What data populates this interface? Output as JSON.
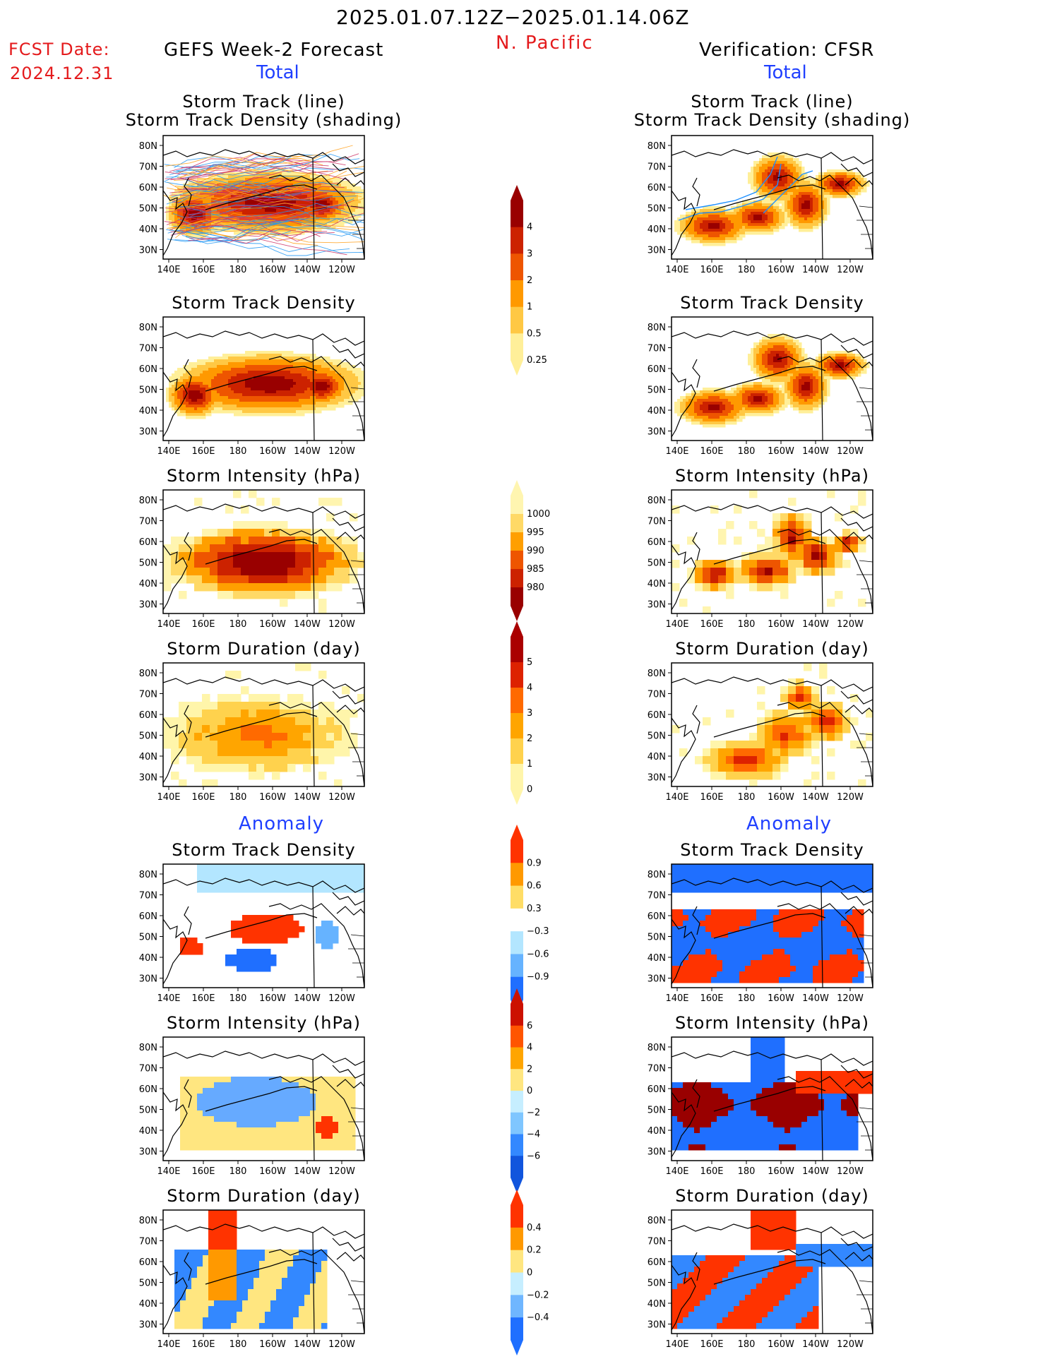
{
  "header": {
    "period": "2025.01.07.12Z−2025.01.14.06Z",
    "region": "N. Pacific",
    "fcst_label": "FCST Date:",
    "fcst_date": "2024.12.31",
    "left_title": "GEFS Week-2 Forecast",
    "right_title": "Verification: CFSR",
    "total_label": "Total",
    "anomaly_label": "Anomaly"
  },
  "axes": {
    "lat_ticks": [
      "80N",
      "70N",
      "60N",
      "50N",
      "40N",
      "30N"
    ],
    "lon_ticks": [
      "140E",
      "160E",
      "180",
      "160W",
      "140W",
      "120W"
    ]
  },
  "panels": {
    "left": [
      {
        "title1": "Storm Track (line)",
        "title2": "Storm Track Density (shading)",
        "kind": "density",
        "track": "dense"
      },
      {
        "title1": "Storm Track Density",
        "title2": "",
        "kind": "density"
      },
      {
        "title1": "Storm Intensity (hPa)",
        "title2": "",
        "kind": "intensity"
      },
      {
        "title1": "Storm Duration (day)",
        "title2": "",
        "kind": "duration"
      },
      {
        "title1": "Storm Track Density",
        "title2": "",
        "kind": "anom_density"
      },
      {
        "title1": "Storm Intensity (hPa)",
        "title2": "",
        "kind": "anom_intensity"
      },
      {
        "title1": "Storm Duration (day)",
        "title2": "",
        "kind": "anom_duration"
      }
    ],
    "right": [
      {
        "title1": "Storm Track (line)",
        "title2": "Storm Track Density (shading)",
        "kind": "density",
        "track": "sparse"
      },
      {
        "title1": "Storm Track Density",
        "title2": "",
        "kind": "density"
      },
      {
        "title1": "Storm Intensity (hPa)",
        "title2": "",
        "kind": "intensity"
      },
      {
        "title1": "Storm Duration (day)",
        "title2": "",
        "kind": "duration"
      },
      {
        "title1": "Storm Track Density",
        "title2": "",
        "kind": "anom_density"
      },
      {
        "title1": "Storm Intensity (hPa)",
        "title2": "",
        "kind": "anom_intensity"
      },
      {
        "title1": "Storm Duration (day)",
        "title2": "",
        "kind": "anom_duration"
      }
    ]
  },
  "colorbars": {
    "density": {
      "labels": [
        "4",
        "3",
        "2",
        "1",
        "0.5",
        "0.25"
      ],
      "colors": [
        "#990000",
        "#cc2200",
        "#ee5500",
        "#ff9900",
        "#ffc844",
        "#ffef99"
      ]
    },
    "intensity": {
      "labels": [
        "1000",
        "995",
        "990",
        "985",
        "980"
      ],
      "colors": [
        "#fff5b0",
        "#ffd966",
        "#ff9f00",
        "#ee5500",
        "#cc2200",
        "#990000"
      ]
    },
    "duration": {
      "labels": [
        "5",
        "4",
        "3",
        "2",
        "1",
        "0"
      ],
      "colors": [
        "#aa0000",
        "#dd2200",
        "#ff6a00",
        "#ffa500",
        "#ffd24d",
        "#fff5aa"
      ]
    },
    "anom_density": {
      "labels": [
        "0.9",
        "0.6",
        "0.3",
        "−0.3",
        "−0.6",
        "−0.9"
      ],
      "colors": [
        "#ff3300",
        "#ff9900",
        "#ffdd66",
        "#ffffff",
        "#b3e6ff",
        "#66b3ff",
        "#1f6fff"
      ]
    },
    "anom_intensity": {
      "labels": [
        "6",
        "4",
        "2",
        "0",
        "−2",
        "−4",
        "−6"
      ],
      "colors": [
        "#cc1100",
        "#ff5500",
        "#ffa500",
        "#ffe680",
        "#c6eeff",
        "#7fc6ff",
        "#3388ff",
        "#1155dd"
      ]
    },
    "anom_duration": {
      "labels": [
        "0.4",
        "0.2",
        "0",
        "−0.2",
        "−0.4"
      ],
      "colors": [
        "#ff3300",
        "#ff9900",
        "#ffe680",
        "#c6eeff",
        "#6fb6ff",
        "#1f6fff"
      ]
    }
  }
}
